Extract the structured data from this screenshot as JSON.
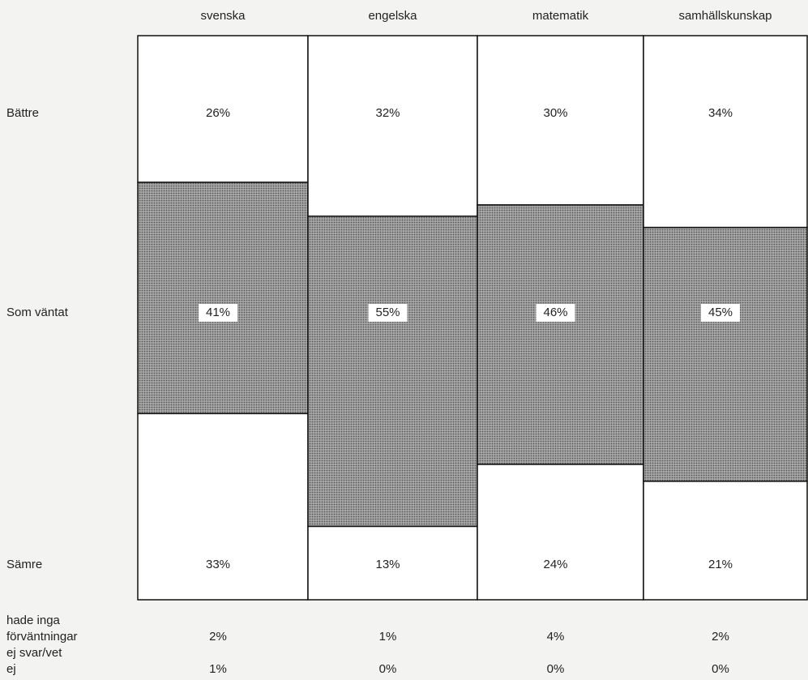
{
  "chart_data": {
    "type": "stacked_column",
    "categories": [
      "svenska",
      "engelska",
      "matematik",
      "samhällskunskap"
    ],
    "series": [
      {
        "name": "Bättre",
        "color": "#ffffff",
        "values": [
          26,
          32,
          30,
          34
        ],
        "value_labels": [
          "26%",
          "32%",
          "30%",
          "34%"
        ]
      },
      {
        "name": "Som väntat",
        "color": "#a9a9a9",
        "pattern": "dots",
        "label_background": "#ffffff",
        "values": [
          41,
          55,
          46,
          45
        ],
        "value_labels": [
          "41%",
          "55%",
          "46%",
          "45%"
        ]
      },
      {
        "name": "Sämre",
        "color": "#ffffff",
        "values": [
          33,
          13,
          24,
          21
        ],
        "value_labels": [
          "33%",
          "13%",
          "24%",
          "21%"
        ]
      }
    ],
    "extra_rows": [
      {
        "name": "hade inga förväntningar",
        "values": [
          2,
          1,
          4,
          2
        ],
        "value_labels": [
          "2%",
          "1%",
          "4%",
          "2%"
        ]
      },
      {
        "name": "ej svar/vet ej",
        "values": [
          1,
          0,
          0,
          0
        ],
        "value_labels": [
          "1%",
          "0%",
          "0%",
          "0%"
        ]
      }
    ]
  }
}
